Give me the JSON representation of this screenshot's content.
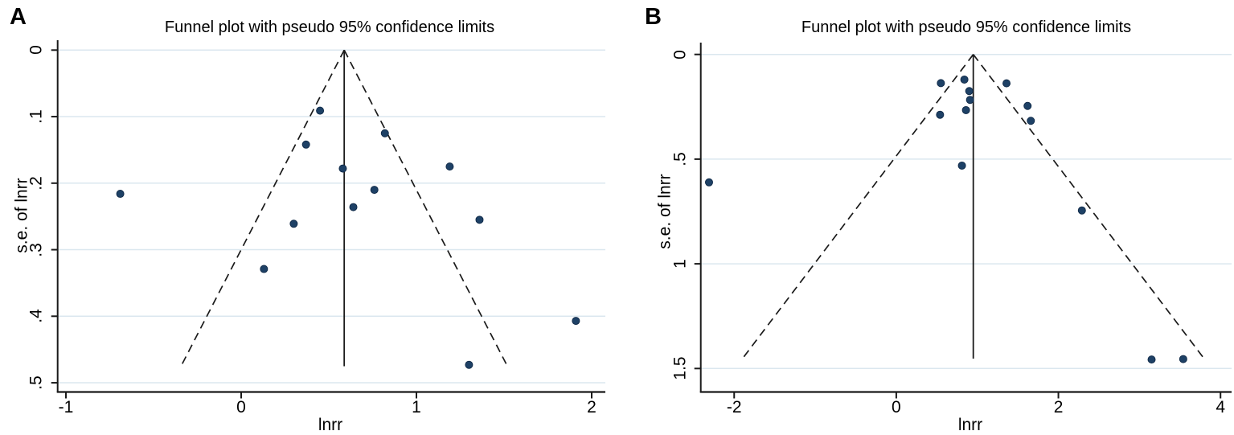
{
  "colors": {
    "marker_fill": "#1e4166",
    "marker_border": "#122c4a",
    "gridline": "#dbe7ef",
    "axis": "#1a1a1a",
    "funnel_line": "#1a1a1a",
    "background": "#ffffff",
    "text": "#000000"
  },
  "chart_data": [
    {
      "type": "scatter",
      "panel_label": "A",
      "title": "Funnel plot with pseudo 95% confidence limits",
      "xlabel": "lnrr",
      "ylabel": "s.e. of lnrr",
      "legend": "none",
      "grid": "horizontal",
      "xticks": [
        {
          "v": -1,
          "label": "-1"
        },
        {
          "v": 0,
          "label": "0"
        },
        {
          "v": 1,
          "label": "1"
        },
        {
          "v": 2,
          "label": "2"
        }
      ],
      "yticks": [
        {
          "v": 0.0,
          "label": "0"
        },
        {
          "v": 0.1,
          "label": ".1"
        },
        {
          "v": 0.2,
          "label": ".2"
        },
        {
          "v": 0.3,
          "label": ".3"
        },
        {
          "v": 0.4,
          "label": ".4"
        },
        {
          "v": 0.5,
          "label": ".5"
        }
      ],
      "xlim": [
        -1.07,
        2.08
      ],
      "ylim_se": [
        0,
        0.514
      ],
      "points": [
        {
          "lnrr": 0.45,
          "se": 0.091
        },
        {
          "lnrr": 0.82,
          "se": 0.125
        },
        {
          "lnrr": 0.37,
          "se": 0.142
        },
        {
          "lnrr": 1.19,
          "se": 0.175
        },
        {
          "lnrr": 0.58,
          "se": 0.178
        },
        {
          "lnrr": 0.76,
          "se": 0.21
        },
        {
          "lnrr": -0.69,
          "se": 0.216
        },
        {
          "lnrr": 0.64,
          "se": 0.236
        },
        {
          "lnrr": 1.36,
          "se": 0.255
        },
        {
          "lnrr": 0.3,
          "se": 0.261
        },
        {
          "lnrr": 0.13,
          "se": 0.329
        },
        {
          "lnrr": 1.91,
          "se": 0.407
        },
        {
          "lnrr": 1.3,
          "se": 0.473
        }
      ],
      "funnel": {
        "center_lnrr": 0.588,
        "max_se": 0.474,
        "z": 1.96
      }
    },
    {
      "type": "scatter",
      "panel_label": "B",
      "title": "Funnel plot with pseudo 95% confidence limits",
      "xlabel": "lnrr",
      "ylabel": "s.e. of lnrr",
      "legend": "none",
      "grid": "horizontal",
      "xticks": [
        {
          "v": -2,
          "label": "-2"
        },
        {
          "v": 0,
          "label": "0"
        },
        {
          "v": 2,
          "label": "2"
        },
        {
          "v": 4,
          "label": "4"
        }
      ],
      "yticks": [
        {
          "v": 0.0,
          "label": "0"
        },
        {
          "v": 0.5,
          "label": ".5"
        },
        {
          "v": 1.0,
          "label": "1"
        },
        {
          "v": 1.5,
          "label": "1.5"
        }
      ],
      "xlim": [
        -2.45,
        4.15
      ],
      "ylim_se": [
        0,
        1.61
      ],
      "points": [
        {
          "lnrr": 0.55,
          "se": 0.137
        },
        {
          "lnrr": 0.84,
          "se": 0.12
        },
        {
          "lnrr": 1.36,
          "se": 0.138
        },
        {
          "lnrr": 0.9,
          "se": 0.175
        },
        {
          "lnrr": 0.91,
          "se": 0.217
        },
        {
          "lnrr": 0.86,
          "se": 0.266
        },
        {
          "lnrr": 0.54,
          "se": 0.288
        },
        {
          "lnrr": 1.62,
          "se": 0.246
        },
        {
          "lnrr": 1.66,
          "se": 0.317
        },
        {
          "lnrr": 0.81,
          "se": 0.531
        },
        {
          "lnrr": -2.31,
          "se": 0.611
        },
        {
          "lnrr": 2.29,
          "se": 0.745
        },
        {
          "lnrr": 3.15,
          "se": 1.457
        },
        {
          "lnrr": 3.54,
          "se": 1.455
        }
      ],
      "funnel": {
        "center_lnrr": 0.95,
        "max_se": 1.449,
        "z": 1.96
      }
    }
  ]
}
